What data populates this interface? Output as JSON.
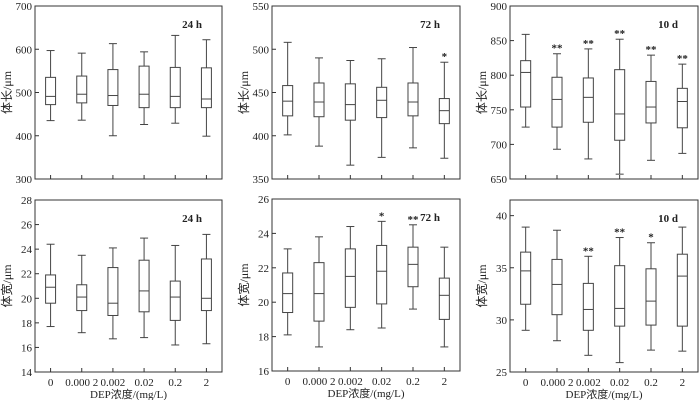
{
  "chart_data": [
    {
      "type": "box",
      "panel_label": "24 h",
      "ylabel": "体长/μm",
      "xlabel": "",
      "ylim": [
        300,
        700
      ],
      "yticks": [
        300,
        400,
        500,
        600,
        700
      ],
      "categories": [
        "0",
        "0.000 2",
        "0.002",
        "0.02",
        "0.2",
        "2"
      ],
      "boxes": [
        [
          435,
          472,
          491,
          535,
          597
        ],
        [
          436,
          476,
          496,
          538,
          591
        ],
        [
          400,
          470,
          493,
          553,
          613
        ],
        [
          426,
          465,
          496,
          561,
          594
        ],
        [
          429,
          465,
          491,
          558,
          632
        ],
        [
          399,
          465,
          485,
          557,
          622
        ]
      ],
      "significance": [
        "",
        "",
        "",
        "",
        "",
        ""
      ]
    },
    {
      "type": "box",
      "panel_label": "72 h",
      "ylabel": "体长/μm",
      "xlabel": "",
      "ylim": [
        350,
        550
      ],
      "yticks": [
        350,
        400,
        450,
        500,
        550
      ],
      "categories": [
        "0",
        "0.000 2",
        "0.002",
        "0.02",
        "0.2",
        "2"
      ],
      "boxes": [
        [
          401,
          423,
          440,
          458,
          508
        ],
        [
          388,
          422,
          439,
          461,
          490
        ],
        [
          366,
          418,
          436,
          460,
          487
        ],
        [
          375,
          421,
          441,
          456,
          489
        ],
        [
          386,
          423,
          439,
          461,
          502
        ],
        [
          374,
          414,
          429,
          443,
          485
        ]
      ],
      "significance": [
        "",
        "",
        "",
        "",
        "",
        "*"
      ]
    },
    {
      "type": "box",
      "panel_label": "10 d",
      "ylabel": "体长/μm",
      "xlabel": "",
      "ylim": [
        650,
        900
      ],
      "yticks": [
        650,
        700,
        750,
        800,
        850,
        900
      ],
      "categories": [
        "0",
        "0.000 2",
        "0.002",
        "0.02",
        "0.2",
        "2"
      ],
      "boxes": [
        [
          725,
          754,
          804,
          821,
          859
        ],
        [
          693,
          725,
          765,
          797,
          831
        ],
        [
          679,
          732,
          768,
          796,
          838
        ],
        [
          657,
          706,
          744,
          808,
          852
        ],
        [
          677,
          731,
          754,
          791,
          829
        ],
        [
          687,
          724,
          762,
          781,
          816
        ]
      ],
      "significance": [
        "",
        "**",
        "**",
        "**",
        "**",
        "**"
      ]
    },
    {
      "type": "box",
      "panel_label": "24 h",
      "ylabel": "体宽/μm",
      "xlabel": "DEP浓度/(mg/L)",
      "ylim": [
        14,
        28
      ],
      "yticks": [
        14,
        16,
        18,
        20,
        22,
        24,
        26,
        28
      ],
      "categories": [
        "0",
        "0.000 2",
        "0.002",
        "0.02",
        "0.2",
        "2"
      ],
      "boxes": [
        [
          17.7,
          19.6,
          20.9,
          21.9,
          24.4
        ],
        [
          17.2,
          19.0,
          20.1,
          21.1,
          23.5
        ],
        [
          16.7,
          18.6,
          19.6,
          22.5,
          24.1
        ],
        [
          16.8,
          18.9,
          20.6,
          23.1,
          24.9
        ],
        [
          16.2,
          18.2,
          20.1,
          21.4,
          24.3
        ],
        [
          16.3,
          19.0,
          20.0,
          23.2,
          25.2
        ]
      ],
      "significance": [
        "",
        "",
        "",
        "",
        "",
        ""
      ]
    },
    {
      "type": "box",
      "panel_label": "72 h",
      "ylabel": "体宽/μm",
      "xlabel": "DEP浓度/(mg/L)",
      "ylim": [
        16,
        26
      ],
      "yticks": [
        16,
        18,
        20,
        22,
        24,
        26
      ],
      "categories": [
        "0",
        "0.000 2",
        "0.002",
        "0.02",
        "0.2",
        "2"
      ],
      "boxes": [
        [
          18.1,
          19.4,
          20.5,
          21.7,
          23.1
        ],
        [
          17.4,
          18.9,
          20.5,
          22.3,
          23.8
        ],
        [
          18.4,
          19.7,
          21.5,
          23.1,
          24.4
        ],
        [
          18.5,
          19.9,
          21.8,
          23.3,
          24.7
        ],
        [
          19.6,
          20.9,
          22.2,
          23.2,
          24.5
        ],
        [
          17.4,
          19.0,
          20.4,
          21.4,
          23.2
        ]
      ],
      "significance": [
        "",
        "",
        "",
        "*",
        "**",
        ""
      ]
    },
    {
      "type": "box",
      "panel_label": "10 d",
      "ylabel": "体宽/μm",
      "xlabel": "DEP浓度/(mg/L)",
      "ylim": [
        25,
        41.5
      ],
      "yticks": [
        25,
        30,
        35,
        40
      ],
      "categories": [
        "0",
        "0.000 2",
        "0.002",
        "0.02",
        "0.2",
        "2"
      ],
      "boxes": [
        [
          29.0,
          31.5,
          34.7,
          36.5,
          38.9
        ],
        [
          28.0,
          30.5,
          33.4,
          35.8,
          38.6
        ],
        [
          26.6,
          29.0,
          31.0,
          33.5,
          36.1
        ],
        [
          25.9,
          29.4,
          31.1,
          35.2,
          37.9
        ],
        [
          27.1,
          29.5,
          31.8,
          34.9,
          37.4
        ],
        [
          27.0,
          29.4,
          34.2,
          36.3,
          38.9
        ]
      ],
      "significance": [
        "",
        "",
        "**",
        "**",
        "*",
        ""
      ]
    }
  ],
  "colors": {
    "axis": "#333333",
    "box": "#444444"
  }
}
